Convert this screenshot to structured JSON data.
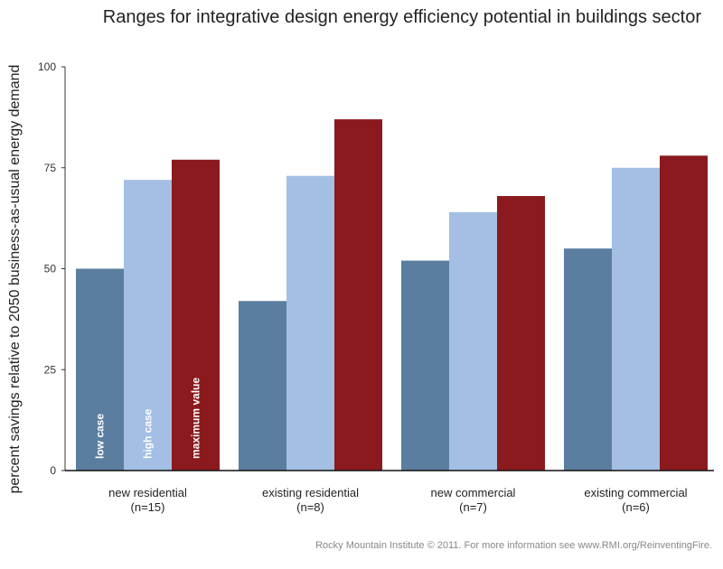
{
  "chart_data": {
    "type": "bar",
    "title": "Ranges for integrative design energy efficiency potential in buildings sector",
    "xlabel": "",
    "ylabel": "percent savings relative to 2050 business-as-usual energy demand",
    "ylim": [
      0,
      100
    ],
    "yticks": [
      0,
      25,
      50,
      75,
      100
    ],
    "grid": false,
    "legend": "inside first group bars",
    "categories": [
      {
        "name": "new residential",
        "n": "(n=15)"
      },
      {
        "name": "existing residential",
        "n": "(n=8)"
      },
      {
        "name": "new commercial",
        "n": "(n=7)"
      },
      {
        "name": "existing commercial",
        "n": "(n=6)"
      }
    ],
    "series": [
      {
        "name": "low case",
        "color": "#5b7ea0",
        "values": [
          50,
          42,
          52,
          55
        ]
      },
      {
        "name": "high case",
        "color": "#a4bfe3",
        "values": [
          72,
          73,
          64,
          75
        ]
      },
      {
        "name": "maximum value",
        "color": "#8a1a1d",
        "values": [
          77,
          87,
          68,
          78
        ]
      }
    ]
  },
  "footer": "Rocky Mountain Institute © 2011. For more information see www.RMI.org/ReinventingFire."
}
